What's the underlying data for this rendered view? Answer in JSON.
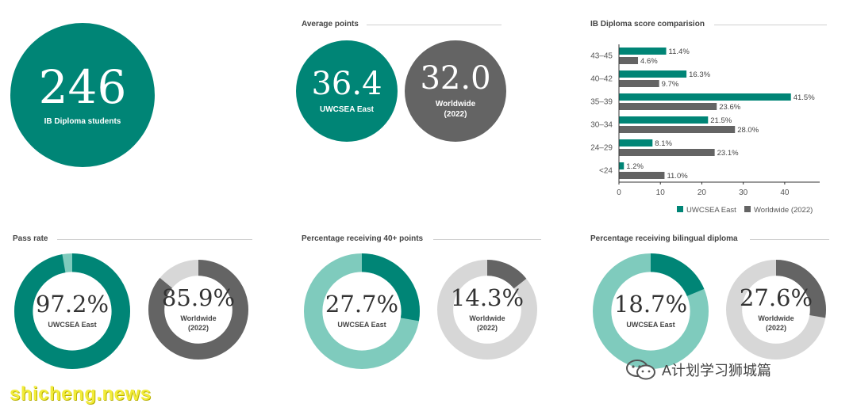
{
  "colors": {
    "teal": "#008576",
    "grey": "#646464",
    "light_teal": "#7fcbbd",
    "light_grey": "#d7d7d7"
  },
  "students": {
    "value": "246",
    "label": "IB Diploma students"
  },
  "average_points": {
    "title": "Average points",
    "uwcsea": {
      "value": "36.4",
      "label": "UWCSEA East"
    },
    "worldwide": {
      "value": "32.0",
      "label": "Worldwide",
      "sublabel": "(2022)"
    }
  },
  "chart_data": {
    "type": "bar",
    "orientation": "horizontal",
    "title": "IB Diploma score comparision",
    "categories": [
      "43–45",
      "40–42",
      "35–39",
      "30–34",
      "24–29",
      "<24"
    ],
    "series": [
      {
        "name": "UWCSEA East",
        "color": "#008576",
        "values": [
          11.4,
          16.3,
          41.5,
          21.5,
          8.1,
          1.2
        ]
      },
      {
        "name": "Worldwide (2022)",
        "color": "#646464",
        "values": [
          4.6,
          9.7,
          23.6,
          28.0,
          23.1,
          11.0
        ]
      }
    ],
    "value_labels": [
      [
        "11.4%",
        "16.3%",
        "41.5%",
        "21.5%",
        "8.1%",
        "1.2%"
      ],
      [
        "4.6%",
        "9.7%",
        "23.6%",
        "28.0%",
        "23.1%",
        "11.0%"
      ]
    ],
    "xlim": [
      0,
      45
    ],
    "xticks": [
      0,
      10,
      20,
      30,
      40
    ],
    "grid": false,
    "legend": "bottom-right"
  },
  "pass_rate": {
    "title": "Pass rate",
    "uwcsea": {
      "value": "97.2%",
      "pct": 97.2,
      "label": "UWCSEA East"
    },
    "worldwide": {
      "value": "85.9%",
      "pct": 85.9,
      "label": "Worldwide",
      "sublabel": "(2022)"
    }
  },
  "forty_plus": {
    "title": "Percentage receiving 40+ points",
    "uwcsea": {
      "value": "27.7%",
      "pct": 27.7,
      "label": "UWCSEA East"
    },
    "worldwide": {
      "value": "14.3%",
      "pct": 14.3,
      "label": "Worldwide",
      "sublabel": "(2022)"
    }
  },
  "bilingual": {
    "title": "Percentage receiving bilingual diploma",
    "uwcsea": {
      "value": "18.7%",
      "pct": 18.7,
      "label": "UWCSEA East"
    },
    "worldwide": {
      "value": "27.6%",
      "pct": 27.6,
      "label": "Worldwide",
      "sublabel": "(2022)"
    }
  },
  "watermarks": {
    "left": "shicheng.news",
    "right": "A计划学习狮城篇",
    "right_icon": "wechat-icon"
  }
}
